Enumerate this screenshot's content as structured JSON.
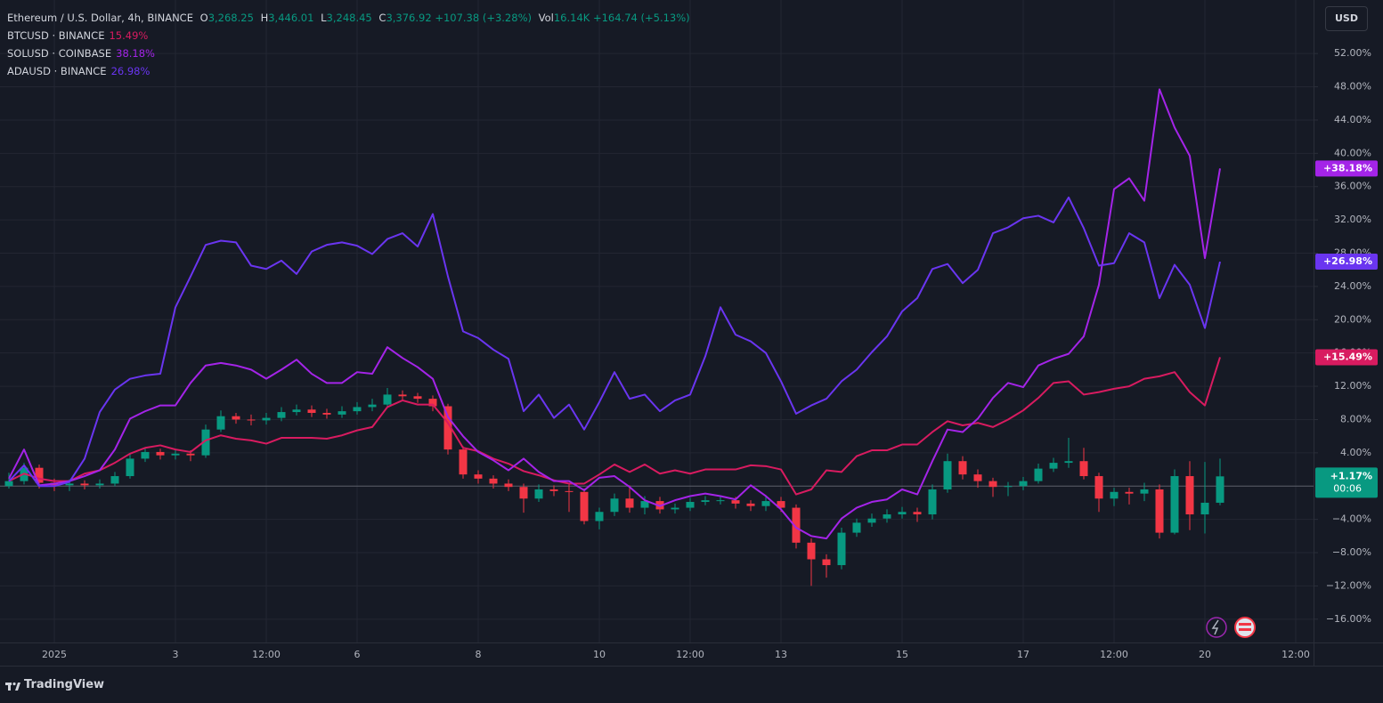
{
  "chart_data": {
    "type": "candlestick",
    "name": "Ethereum / U.S. Dollar, 4h, BINANCE",
    "ohlc": {
      "open_label": "O",
      "open": "3,268.25",
      "high_label": "H",
      "high": "3,446.01",
      "low_label": "L",
      "low": "3,248.45",
      "close_label": "C",
      "close": "3,376.92",
      "change": "+107.38 (+3.28%)",
      "volume_label": "Vol",
      "volume": "16.14K",
      "volume_change": "+164.74 (+5.13%)"
    },
    "currency": "USD",
    "last_label": "+1.17%",
    "countdown": "00:06",
    "up_color": "#089981",
    "down_color": "#f23645",
    "categories": [
      null,
      null,
      null,
      "2025",
      null,
      null,
      null,
      null,
      null,
      null,
      null,
      "3",
      null,
      null,
      null,
      null,
      null,
      "12:00",
      null,
      null,
      null,
      null,
      null,
      "6",
      null,
      null,
      null,
      null,
      null,
      null,
      null,
      "8",
      null,
      null,
      null,
      null,
      null,
      null,
      null,
      "10",
      null,
      null,
      null,
      null,
      null,
      "12:00",
      null,
      null,
      null,
      null,
      null,
      "13",
      null,
      null,
      null,
      null,
      null,
      null,
      null,
      "15",
      null,
      null,
      null,
      null,
      null,
      null,
      null,
      "17",
      null,
      null,
      null,
      null,
      null,
      "12:00",
      null,
      null,
      null,
      null,
      null,
      "20",
      null,
      null,
      null,
      null,
      null,
      "12:00"
    ],
    "open": [
      0,
      0.6,
      2.2,
      0.4,
      0.1,
      0.3,
      0.1,
      0.3,
      1.2,
      3.3,
      4.1,
      3.7,
      3.9,
      3.7,
      6.8,
      8.4,
      8.0,
      7.9,
      8.2,
      8.9,
      9.2,
      8.8,
      8.6,
      9.0,
      9.5,
      9.8,
      11.0,
      10.8,
      10.5,
      9.6,
      4.4,
      1.4,
      0.9,
      0.3,
      -0.1,
      -1.5,
      -0.4,
      -0.6,
      -0.7,
      -4.2,
      -3.1,
      -1.5,
      -2.6,
      -1.8,
      -2.8,
      -2.6,
      -1.9,
      -1.7,
      -1.7,
      -2.1,
      -2.4,
      -1.8,
      -2.6,
      -6.8,
      -8.8,
      -9.5,
      -5.6,
      -4.4,
      -3.9,
      -3.4,
      -3.1,
      -3.4,
      -0.4,
      3.0,
      1.4,
      0.6,
      -0.1,
      0.0,
      0.6,
      2.1,
      2.8,
      3.0,
      1.2,
      -1.5,
      -0.7,
      -0.9,
      -0.4,
      -5.6,
      1.2,
      -3.4,
      -2.0,
      null,
      null,
      null,
      null,
      null
    ],
    "high": [
      1.6,
      2.8,
      2.6,
      0.9,
      0.8,
      0.7,
      0.8,
      1.7,
      3.9,
      4.6,
      4.5,
      4.4,
      4.3,
      7.4,
      9.1,
      8.8,
      8.6,
      8.8,
      9.5,
      9.8,
      9.7,
      9.3,
      9.6,
      10.1,
      10.5,
      11.8,
      11.5,
      11.2,
      10.9,
      9.9,
      4.8,
      1.9,
      1.3,
      0.8,
      0.3,
      0.2,
      0.1,
      0.2,
      -0.3,
      -2.6,
      -0.9,
      0.1,
      -1.2,
      -1.3,
      -2.1,
      -1.4,
      -1.2,
      -1.2,
      -1.3,
      -1.7,
      -1.2,
      -1.3,
      -2.2,
      -6.3,
      -8.2,
      -5.0,
      -3.9,
      -3.3,
      -2.8,
      -2.5,
      -2.6,
      0.2,
      3.9,
      3.6,
      2.0,
      1.0,
      0.5,
      1.1,
      2.7,
      3.4,
      5.8,
      4.6,
      1.6,
      -0.2,
      -0.2,
      0.4,
      0.2,
      2.0,
      3.0,
      2.9,
      3.3,
      null,
      null,
      null,
      null,
      null
    ],
    "low": [
      -0.3,
      0.2,
      -0.3,
      -0.6,
      -0.6,
      -0.4,
      -0.3,
      0.0,
      0.9,
      2.9,
      3.2,
      3.2,
      3.0,
      3.4,
      6.5,
      7.5,
      7.3,
      7.4,
      7.8,
      8.5,
      8.3,
      8.1,
      8.2,
      8.6,
      9.0,
      9.4,
      10.2,
      10.0,
      9.0,
      3.8,
      0.9,
      0.3,
      -0.3,
      -0.6,
      -3.2,
      -1.9,
      -1.2,
      -3.1,
      -4.6,
      -5.2,
      -3.6,
      -3.2,
      -3.4,
      -3.3,
      -3.3,
      -3.0,
      -2.3,
      -2.2,
      -2.7,
      -3.0,
      -3.0,
      -3.1,
      -7.5,
      -12.0,
      -11.0,
      -10.0,
      -6.1,
      -4.9,
      -4.4,
      -3.9,
      -4.3,
      -4.0,
      -0.8,
      0.8,
      -0.2,
      -1.3,
      -1.2,
      -0.5,
      0.3,
      1.7,
      2.2,
      0.8,
      -3.1,
      -2.4,
      -2.2,
      -1.8,
      -6.3,
      -5.8,
      -5.3,
      -5.7,
      -2.3,
      null,
      null,
      null,
      null,
      null
    ],
    "close": [
      0.6,
      2.2,
      0.4,
      0.1,
      0.3,
      0.1,
      0.3,
      1.2,
      3.3,
      4.1,
      3.7,
      3.9,
      3.7,
      6.8,
      8.4,
      8.0,
      7.9,
      8.2,
      8.9,
      9.2,
      8.8,
      8.6,
      9.0,
      9.5,
      9.8,
      11.0,
      10.8,
      10.5,
      9.6,
      4.4,
      1.4,
      0.9,
      0.3,
      -0.1,
      -1.5,
      -0.4,
      -0.6,
      -0.7,
      -4.2,
      -3.1,
      -1.5,
      -2.6,
      -1.8,
      -2.8,
      -2.6,
      -1.9,
      -1.7,
      -1.7,
      -2.1,
      -2.4,
      -1.8,
      -2.6,
      -6.8,
      -8.8,
      -9.5,
      -5.6,
      -4.4,
      -3.9,
      -3.4,
      -3.1,
      -3.4,
      -0.4,
      3.0,
      1.4,
      0.6,
      -0.1,
      0.0,
      0.6,
      2.1,
      2.8,
      3.0,
      1.2,
      -1.5,
      -0.7,
      -0.9,
      -0.4,
      -5.6,
      1.2,
      -3.4,
      -2.0,
      1.17,
      null,
      null,
      null,
      null,
      null
    ],
    "series": [
      {
        "name": "BTCUSD · BINANCE",
        "legend_value": "15.49%",
        "badge": "+15.49%",
        "color": "#d81b60",
        "values": [
          0.6,
          1.5,
          0.9,
          0.6,
          0.6,
          1.5,
          1.9,
          2.8,
          3.9,
          4.6,
          4.9,
          4.4,
          4.1,
          5.5,
          6.1,
          5.7,
          5.5,
          5.1,
          5.8,
          5.8,
          5.8,
          5.7,
          6.1,
          6.7,
          7.1,
          9.5,
          10.3,
          9.8,
          9.8,
          7.6,
          4.6,
          4.2,
          3.3,
          2.7,
          1.8,
          1.3,
          0.7,
          0.3,
          0.3,
          1.4,
          2.6,
          1.7,
          2.6,
          1.5,
          1.9,
          1.5,
          2.0,
          2.0,
          2.0,
          2.5,
          2.4,
          2.0,
          -1.0,
          -0.4,
          1.9,
          1.7,
          3.6,
          4.3,
          4.3,
          5.0,
          5.0,
          6.5,
          7.8,
          7.3,
          7.6,
          7.1,
          8.0,
          9.1,
          10.6,
          12.4,
          12.6,
          11.0,
          11.3,
          11.7,
          12.0,
          12.9,
          13.2,
          13.7,
          11.3,
          9.7,
          15.49,
          null,
          null,
          null,
          null,
          null
        ]
      },
      {
        "name": "SOLUSD · COINBASE",
        "legend_value": "38.18%",
        "badge": "+38.18%",
        "color": "#a424e8",
        "values": [
          0.9,
          4.4,
          0.1,
          0.3,
          0.6,
          1.2,
          1.9,
          4.4,
          8.1,
          9.0,
          9.7,
          9.7,
          12.4,
          14.5,
          14.8,
          14.5,
          14.0,
          12.9,
          14.0,
          15.2,
          13.5,
          12.4,
          12.4,
          13.7,
          13.5,
          16.7,
          15.4,
          14.3,
          12.9,
          8.3,
          6.0,
          4.1,
          3.1,
          1.9,
          3.3,
          1.7,
          0.6,
          0.6,
          -0.5,
          1.0,
          1.2,
          -0.1,
          -1.7,
          -2.4,
          -1.7,
          -1.2,
          -0.9,
          -1.2,
          -1.6,
          0.1,
          -1.2,
          -2.8,
          -5.0,
          -6.0,
          -6.3,
          -3.9,
          -2.6,
          -1.9,
          -1.6,
          -0.4,
          -1.0,
          3.0,
          6.8,
          6.5,
          8.1,
          10.6,
          12.4,
          11.9,
          14.5,
          15.3,
          15.9,
          18.0,
          24.2,
          35.7,
          37.0,
          34.3,
          47.7,
          43.1,
          39.7,
          27.4,
          38.18,
          null,
          null,
          null,
          null,
          null
        ]
      },
      {
        "name": "ADAUSD · BINANCE",
        "legend_value": "26.98%",
        "badge": "+26.98%",
        "color": "#6a35f0",
        "values": [
          0.6,
          2.5,
          0,
          0,
          0.5,
          3.3,
          8.9,
          11.6,
          12.9,
          13.3,
          13.5,
          21.5,
          25.2,
          29.0,
          29.5,
          29.3,
          26.5,
          26.1,
          27.1,
          25.5,
          28.2,
          29.0,
          29.3,
          28.9,
          27.9,
          29.7,
          30.4,
          28.8,
          32.7,
          25.2,
          18.6,
          17.8,
          16.4,
          15.3,
          9.0,
          11.0,
          8.2,
          9.8,
          6.8,
          10.1,
          13.7,
          10.5,
          11.0,
          9.0,
          10.3,
          11.0,
          15.6,
          21.5,
          18.2,
          17.4,
          16.0,
          12.6,
          8.7,
          9.7,
          10.5,
          12.6,
          14.0,
          16.1,
          18.0,
          21.0,
          22.6,
          26.1,
          26.7,
          24.4,
          26.0,
          30.4,
          31.1,
          32.2,
          32.5,
          31.7,
          34.7,
          31.0,
          26.5,
          26.8,
          30.4,
          29.3,
          22.6,
          26.6,
          24.2,
          19.0,
          26.98,
          null,
          null,
          null,
          null,
          null
        ]
      }
    ],
    "ylim": [
      -18.8,
      57.9
    ],
    "yticks": [
      {
        "value": 52,
        "label": "52.00%"
      },
      {
        "value": 48,
        "label": "48.00%"
      },
      {
        "value": 44,
        "label": "44.00%"
      },
      {
        "value": 40,
        "label": "40.00%"
      },
      {
        "value": 36,
        "label": "36.00%"
      },
      {
        "value": 32,
        "label": "32.00%"
      },
      {
        "value": 28,
        "label": "28.00%"
      },
      {
        "value": 24,
        "label": "24.00%"
      },
      {
        "value": 20,
        "label": "20.00%"
      },
      {
        "value": 16,
        "label": "16.00%"
      },
      {
        "value": 12,
        "label": "12.00%"
      },
      {
        "value": 8,
        "label": "8.00%"
      },
      {
        "value": 4,
        "label": "4.00%"
      },
      {
        "value": -4,
        "label": "−4.00%"
      },
      {
        "value": -8,
        "label": "−8.00%"
      },
      {
        "value": -12,
        "label": "−12.00%"
      },
      {
        "value": -16,
        "label": "−16.00%"
      }
    ],
    "grid": true
  },
  "footer": {
    "brand": "TradingView"
  }
}
